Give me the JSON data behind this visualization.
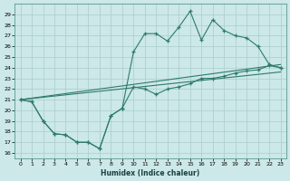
{
  "xlabel": "Humidex (Indice chaleur)",
  "bg_color": "#cce8e8",
  "grid_color": "#aacccc",
  "line_color": "#2d7a6e",
  "xlim": [
    -0.5,
    23.5
  ],
  "ylim": [
    15.5,
    30
  ],
  "yticks": [
    16,
    17,
    18,
    19,
    20,
    21,
    22,
    23,
    24,
    25,
    26,
    27,
    28,
    29
  ],
  "xticks": [
    0,
    1,
    2,
    3,
    4,
    5,
    6,
    7,
    8,
    9,
    10,
    11,
    12,
    13,
    14,
    15,
    16,
    17,
    18,
    19,
    20,
    21,
    22,
    23
  ],
  "line_low_x": [
    0,
    1,
    2,
    3,
    4,
    5,
    6,
    7,
    8,
    9,
    10,
    11,
    12,
    13,
    14,
    15,
    16,
    17,
    18,
    19,
    20,
    21,
    22,
    23
  ],
  "line_low_y": [
    21.0,
    20.8,
    19.0,
    17.8,
    17.7,
    17.0,
    17.0,
    16.4,
    19.5,
    20.2,
    22.2,
    22.0,
    21.5,
    22.0,
    22.2,
    22.5,
    23.0,
    23.0,
    23.2,
    23.5,
    23.7,
    23.8,
    24.2,
    24.0
  ],
  "line_high_x": [
    0,
    1,
    2,
    3,
    4,
    5,
    6,
    7,
    8,
    9,
    10,
    11,
    12,
    13,
    14,
    15,
    16,
    17,
    18,
    19,
    20,
    21,
    22,
    23
  ],
  "line_high_y": [
    21.0,
    20.8,
    19.0,
    17.8,
    17.7,
    17.0,
    17.0,
    16.4,
    19.5,
    20.2,
    25.5,
    27.2,
    27.2,
    26.5,
    27.8,
    29.3,
    26.6,
    28.5,
    27.5,
    27.0,
    26.8,
    26.0,
    24.3,
    24.0
  ],
  "trend1_x": [
    0,
    23
  ],
  "trend1_y": [
    21.0,
    24.3
  ],
  "trend2_x": [
    0,
    23
  ],
  "trend2_y": [
    21.0,
    23.6
  ],
  "figsize": [
    3.2,
    2.0
  ],
  "dpi": 100
}
